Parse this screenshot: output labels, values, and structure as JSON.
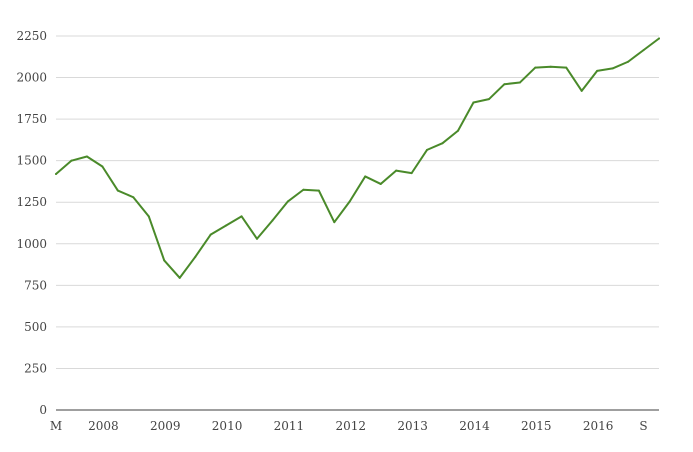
{
  "chart_data": {
    "type": "line",
    "title": "",
    "xlabel": "",
    "ylabel": "",
    "ylim": [
      0,
      2250
    ],
    "grid": true,
    "legend": "none",
    "y_ticks": [
      0,
      250,
      500,
      750,
      1000,
      1250,
      1500,
      1750,
      2000,
      2250
    ],
    "y_tick_labels": [
      "0",
      "250",
      "500",
      "750",
      "1000",
      "1250",
      "1500",
      "1750",
      "2000",
      "2250"
    ],
    "x_tick_labels": [
      "M",
      "2008",
      "2009",
      "2010",
      "2011",
      "2012",
      "2013",
      "2014",
      "2015",
      "2016",
      "S"
    ],
    "x_tick_index": [
      0,
      3,
      7,
      11,
      15,
      19,
      23,
      27,
      31,
      35,
      38
    ],
    "x_range_index": [
      0,
      39
    ],
    "line_color": "#4a8a2a",
    "series": [
      {
        "values": [
          1420,
          1500,
          1525,
          1465,
          1320,
          1280,
          1165,
          900,
          795,
          920,
          1055,
          1110,
          1165,
          1030,
          1140,
          1255,
          1325,
          1320,
          1130,
          1255,
          1405,
          1360,
          1440,
          1425,
          1565,
          1605,
          1680,
          1850,
          1870,
          1960,
          1970,
          2060,
          2065,
          2060,
          1920,
          2040,
          2055,
          2095,
          2165,
          2235
        ]
      }
    ]
  }
}
